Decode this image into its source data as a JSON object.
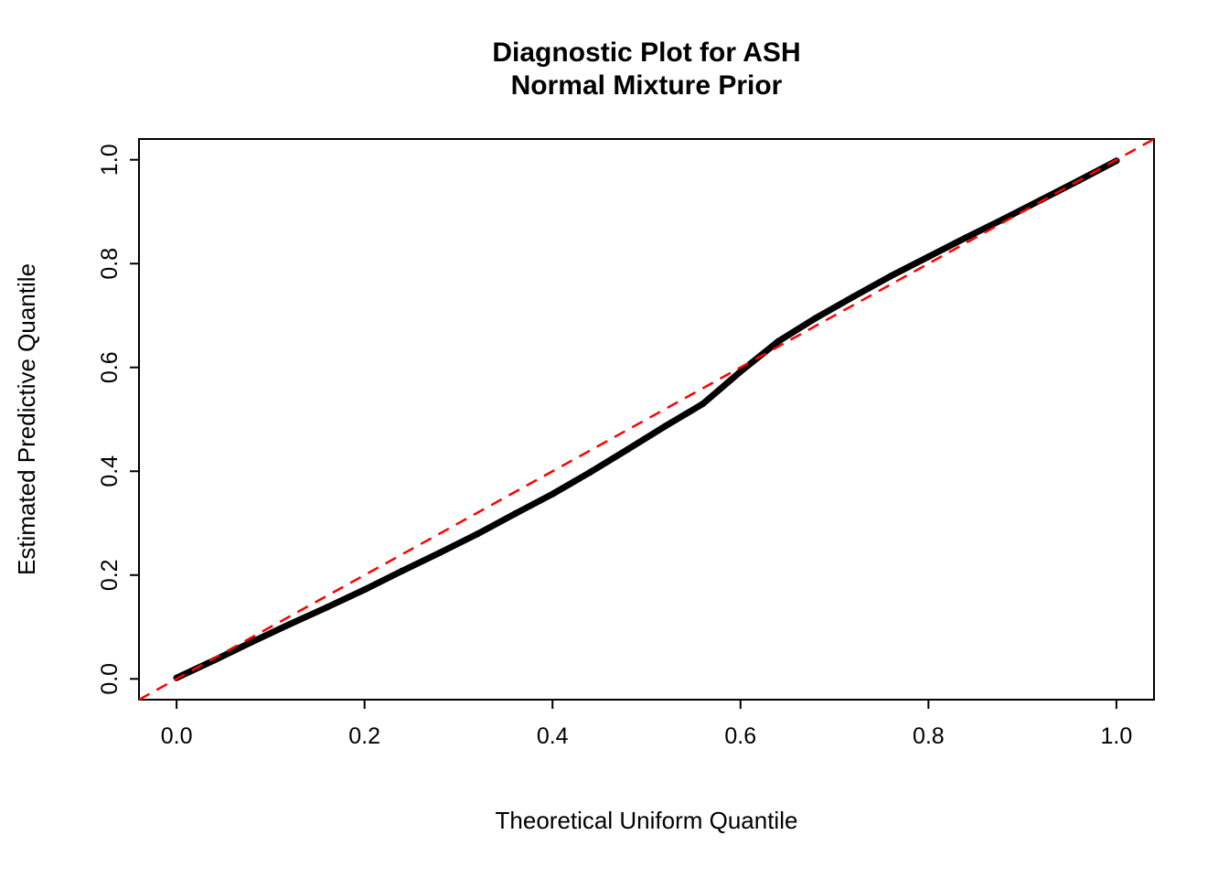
{
  "chart_data": {
    "type": "scatter",
    "title_line1": "Diagnostic Plot for ASH",
    "title_line2": "Normal Mixture Prior",
    "xlabel": "Theoretical Uniform Quantile",
    "ylabel": "Estimated Predictive Quantile",
    "xlim": [
      -0.04,
      1.04
    ],
    "ylim": [
      -0.04,
      1.04
    ],
    "grid": false,
    "legend_position": "none",
    "xticks": {
      "values": [
        0.0,
        0.2,
        0.4,
        0.6,
        0.8,
        1.0
      ],
      "labels": [
        "0.0",
        "0.2",
        "0.4",
        "0.6",
        "0.8",
        "1.0"
      ]
    },
    "yticks": {
      "values": [
        0.0,
        0.2,
        0.4,
        0.6,
        0.8,
        1.0
      ],
      "labels": [
        "0.0",
        "0.2",
        "0.4",
        "0.6",
        "0.8",
        "1.0"
      ]
    },
    "series": [
      {
        "name": "estimated-predictive-quantiles",
        "type": "points",
        "color": "#000000",
        "x": [
          0.0,
          0.04,
          0.08,
          0.12,
          0.16,
          0.2,
          0.24,
          0.28,
          0.32,
          0.36,
          0.4,
          0.44,
          0.48,
          0.52,
          0.56,
          0.6,
          0.64,
          0.68,
          0.72,
          0.76,
          0.8,
          0.84,
          0.88,
          0.92,
          0.96,
          1.0
        ],
        "y": [
          0.002,
          0.036,
          0.071,
          0.105,
          0.138,
          0.172,
          0.208,
          0.243,
          0.279,
          0.318,
          0.356,
          0.398,
          0.442,
          0.487,
          0.53,
          0.592,
          0.65,
          0.695,
          0.736,
          0.776,
          0.813,
          0.85,
          0.886,
          0.923,
          0.96,
          0.998
        ]
      },
      {
        "name": "identity-reference-line",
        "type": "dashed-line",
        "color": "#FF0000",
        "x": [
          -0.04,
          1.04
        ],
        "y": [
          -0.04,
          1.04
        ]
      }
    ]
  }
}
